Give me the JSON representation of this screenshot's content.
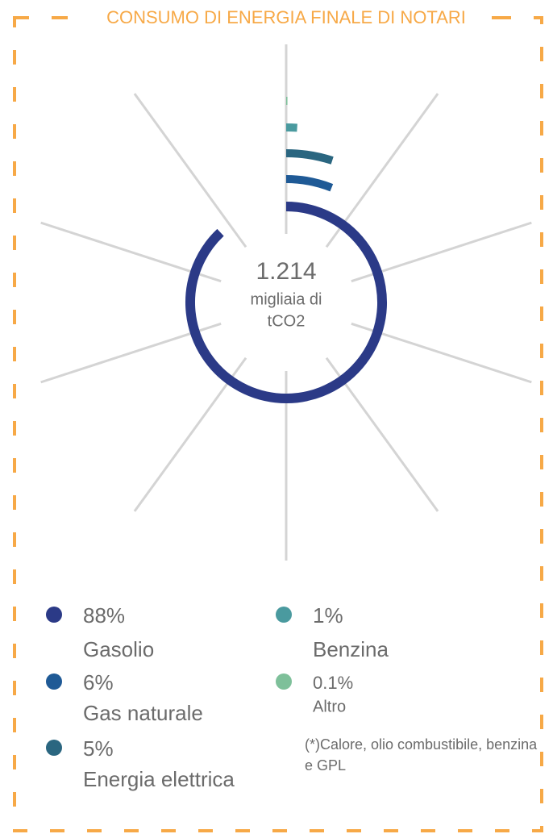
{
  "chart_data": {
    "type": "radial-bar",
    "title": "CONSUMO DI ENERGIA FINALE DI NOTARI",
    "total": "1.214",
    "unit_lines": [
      "migliaia di",
      "tCO2"
    ],
    "categories": [
      "Gasolio",
      "Gas naturale",
      "Energia elettrica",
      "Benzina",
      "Altro"
    ],
    "values": [
      88,
      6,
      5,
      1,
      0.1
    ],
    "value_labels": [
      "88%",
      "6%",
      "5%",
      "1%",
      "0.1%"
    ],
    "colors": [
      "#2b3a87",
      "#1f5a96",
      "#2a6680",
      "#4a9a9f",
      "#7ec09a"
    ],
    "footnote": "(*)Calore, olio combustibile, benzina e GPL"
  }
}
